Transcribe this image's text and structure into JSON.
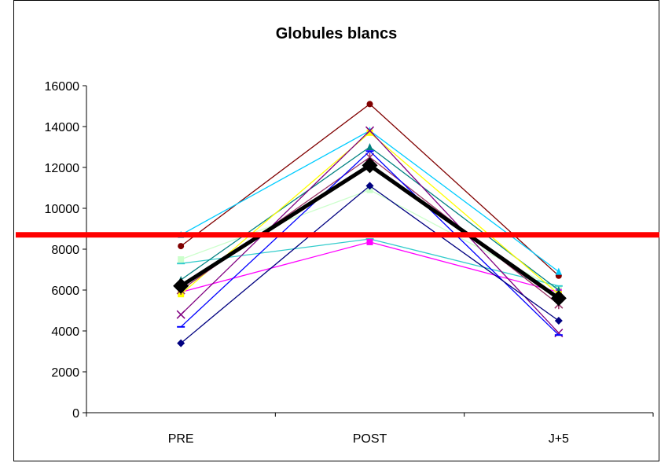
{
  "chart_data": {
    "type": "line",
    "title": "Globules blancs",
    "xlabel": "",
    "ylabel": "",
    "categories": [
      "PRE",
      "POST",
      "J+5"
    ],
    "ylim": [
      0,
      16000
    ],
    "yticks": [
      0,
      2000,
      4000,
      6000,
      8000,
      10000,
      12000,
      14000,
      16000
    ],
    "grid": false,
    "legend": "none",
    "reference_line": {
      "value": 8700,
      "color": "#ff0000"
    },
    "series": [
      {
        "color": "#800000",
        "marker": "circle",
        "values": [
          8150,
          15100,
          6700
        ]
      },
      {
        "color": "#00ccff",
        "marker": "triangle",
        "values": [
          8700,
          13800,
          6900
        ]
      },
      {
        "color": "#ccffcc",
        "marker": "square",
        "values": [
          7500,
          10900,
          6000
        ]
      },
      {
        "color": "#33cccc",
        "marker": "dash",
        "values": [
          7300,
          8500,
          6200
        ]
      },
      {
        "color": "#ff00ff",
        "marker": "square",
        "values": [
          5900,
          8350,
          5900
        ]
      },
      {
        "color": "#008080",
        "marker": "triangle",
        "values": [
          6500,
          13000,
          6000
        ]
      },
      {
        "color": "#ffff00",
        "marker": "square",
        "values": [
          5800,
          13700,
          5800
        ]
      },
      {
        "color": "#993366",
        "marker": "star",
        "values": [
          6000,
          12500,
          5300
        ]
      },
      {
        "color": "#800080",
        "marker": "x",
        "values": [
          4800,
          13800,
          3900
        ]
      },
      {
        "color": "#0000ff",
        "marker": "dash",
        "values": [
          4200,
          12800,
          3800
        ]
      },
      {
        "color": "#000080",
        "marker": "diamond",
        "values": [
          3400,
          11100,
          4500
        ]
      },
      {
        "color": "#000000",
        "marker": "diamond",
        "values": [
          6200,
          12100,
          5600
        ]
      }
    ]
  }
}
